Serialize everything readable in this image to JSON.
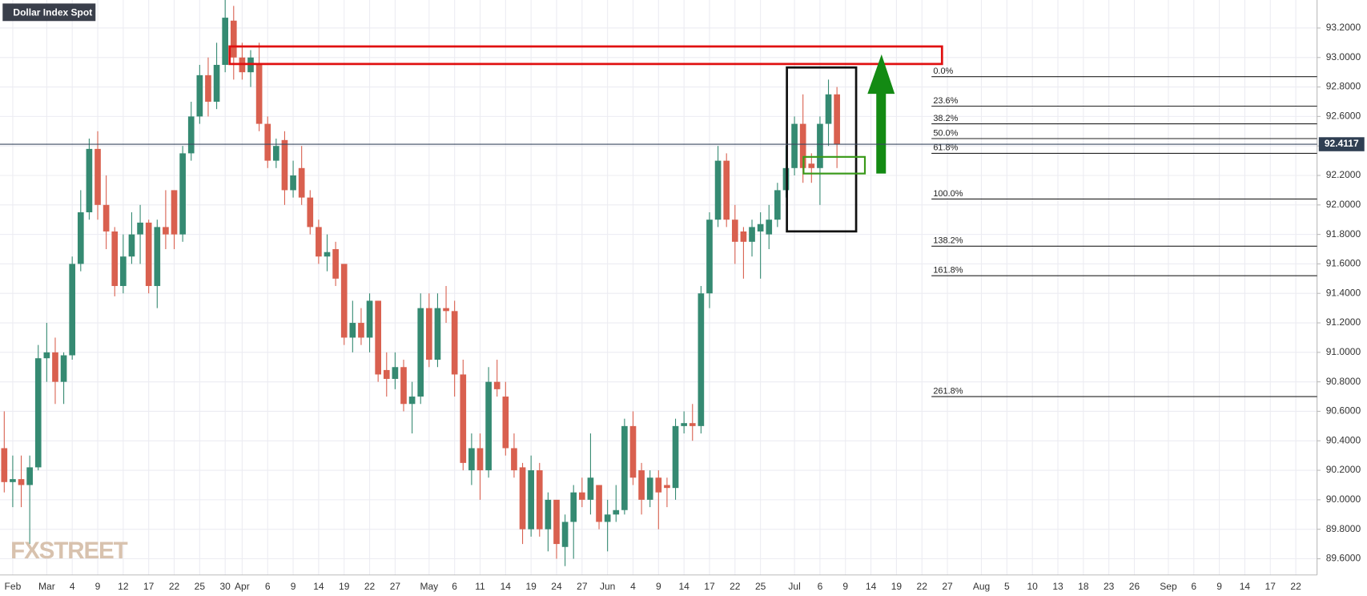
{
  "chart_data": {
    "type": "candlestick",
    "title": "Dollar Index Spot",
    "logo": "FXSTREET",
    "up_color": "#358a72",
    "down_color": "#d9604f",
    "grid": true,
    "categories": [
      null,
      "Feb",
      null,
      null,
      null,
      "Mar",
      null,
      null,
      "4",
      null,
      null,
      "9",
      null,
      null,
      "12",
      null,
      null,
      "17",
      null,
      null,
      "22",
      null,
      null,
      "25",
      null,
      null,
      "30",
      null,
      "Apr",
      null,
      null,
      "6",
      null,
      null,
      "9",
      null,
      null,
      "14",
      null,
      null,
      "19",
      null,
      null,
      "22",
      null,
      null,
      "27",
      null,
      null,
      null,
      "May",
      null,
      null,
      "6",
      null,
      null,
      "11",
      null,
      null,
      "14",
      null,
      null,
      "19",
      null,
      null,
      "24",
      null,
      null,
      "27",
      null,
      null,
      "Jun",
      null,
      null,
      "4",
      null,
      null,
      "9",
      null,
      null,
      "14",
      null,
      null,
      "17",
      null,
      null,
      "22",
      null,
      null,
      "25",
      null,
      null,
      null,
      "Jul",
      null,
      null,
      "6",
      null,
      null,
      "9",
      null,
      null,
      "14",
      null,
      null,
      "19",
      null,
      null,
      "22",
      null,
      null,
      "27",
      null,
      null,
      null,
      "Aug",
      null,
      null,
      "5",
      null,
      null,
      "10",
      null,
      null,
      "13",
      null,
      null,
      "18",
      null,
      null,
      "23",
      null,
      null,
      "26",
      null,
      null,
      null,
      "Sep",
      null,
      null,
      "6",
      null,
      null,
      "9",
      null,
      null,
      "14",
      null,
      null,
      "17",
      null,
      null,
      "22",
      null,
      null
    ],
    "open": [
      90.35,
      90.12,
      90.14,
      90.1,
      90.22,
      90.96,
      91.0,
      90.8,
      90.98,
      91.6,
      91.95,
      92.38,
      92.0,
      91.82,
      91.45,
      91.65,
      91.8,
      91.88,
      91.45,
      91.85,
      92.1,
      91.8,
      92.35,
      92.6,
      92.88,
      92.7,
      92.95,
      93.25,
      93.0,
      92.9,
      92.95,
      92.55,
      92.3,
      92.44,
      92.1,
      92.25,
      92.05,
      91.85,
      91.65,
      91.7,
      91.6,
      91.1,
      91.2,
      91.1,
      91.35,
      90.88,
      90.82,
      90.9,
      90.65,
      90.7,
      91.3,
      90.95,
      91.3,
      91.28,
      90.85,
      90.2,
      90.35,
      90.2,
      90.8,
      90.7,
      90.35,
      90.22,
      89.8,
      90.2,
      89.8,
      90.0,
      89.68,
      89.85,
      90.05,
      90.0,
      90.1,
      89.85,
      89.9,
      89.93,
      90.5,
      90.2,
      90.0,
      90.15,
      90.1,
      90.08,
      90.5,
      90.52,
      90.5,
      91.4,
      91.9,
      92.3,
      91.9,
      91.82,
      91.75,
      91.82,
      91.8,
      91.9,
      92.1,
      92.25,
      92.55,
      92.28,
      92.25,
      92.55,
      92.75,
      null,
      null,
      null,
      null,
      null,
      null,
      null,
      null,
      null,
      null,
      null,
      null,
      null,
      null,
      null,
      null,
      null,
      null,
      null,
      null,
      null,
      null,
      null,
      null,
      null,
      null,
      null,
      null,
      null,
      null,
      null,
      null,
      null,
      null,
      null,
      null,
      null,
      null,
      null,
      null,
      null,
      null,
      null,
      null,
      null,
      null,
      null,
      null,
      null,
      null,
      null,
      null,
      null,
      null,
      null,
      null
    ],
    "high": [
      90.6,
      90.3,
      90.3,
      90.3,
      91.05,
      91.2,
      91.1,
      91.0,
      91.65,
      92.1,
      92.45,
      92.5,
      92.2,
      91.85,
      91.8,
      91.95,
      92.0,
      91.9,
      91.9,
      92.1,
      92.1,
      92.4,
      92.7,
      92.95,
      93.0,
      93.1,
      93.4,
      93.35,
      93.1,
      93.05,
      93.1,
      92.6,
      92.45,
      92.5,
      92.3,
      92.4,
      92.1,
      91.9,
      91.8,
      91.75,
      91.6,
      91.35,
      91.3,
      91.4,
      91.35,
      91.0,
      91.0,
      90.95,
      90.8,
      91.4,
      91.4,
      91.4,
      91.45,
      91.35,
      90.95,
      90.45,
      90.45,
      90.9,
      90.95,
      90.8,
      90.45,
      90.25,
      90.3,
      90.25,
      90.05,
      90.0,
      89.9,
      90.1,
      90.15,
      90.45,
      90.1,
      90.0,
      90.1,
      90.55,
      90.6,
      90.25,
      90.2,
      90.2,
      90.15,
      90.55,
      90.6,
      90.65,
      91.45,
      91.95,
      92.4,
      92.35,
      92.0,
      91.85,
      91.9,
      91.95,
      92.0,
      92.15,
      92.4,
      92.6,
      92.75,
      92.35,
      92.6,
      92.85,
      92.8,
      null,
      null,
      null,
      null,
      null,
      null,
      null,
      null,
      null,
      null,
      null,
      null,
      null,
      null,
      null,
      null,
      null,
      null,
      null,
      null,
      null,
      null,
      null,
      null,
      null,
      null,
      null,
      null,
      null,
      null,
      null,
      null,
      null,
      null,
      null,
      null,
      null,
      null,
      null,
      null,
      null,
      null,
      null,
      null,
      null,
      null,
      null,
      null,
      null,
      null,
      null,
      null,
      null,
      null,
      null,
      null
    ],
    "low": [
      90.05,
      89.95,
      89.95,
      89.7,
      90.2,
      90.8,
      90.65,
      90.65,
      90.95,
      91.55,
      91.9,
      91.9,
      91.7,
      91.38,
      91.4,
      91.6,
      91.6,
      91.4,
      91.3,
      91.7,
      91.7,
      91.75,
      92.3,
      92.55,
      92.6,
      92.65,
      92.9,
      92.85,
      92.85,
      92.8,
      92.5,
      92.25,
      92.25,
      92.0,
      92.05,
      92.0,
      91.8,
      91.6,
      91.55,
      91.45,
      91.05,
      91.0,
      91.05,
      91.0,
      90.8,
      90.7,
      90.75,
      90.6,
      90.45,
      90.65,
      90.9,
      90.9,
      91.2,
      90.7,
      90.2,
      90.1,
      90.0,
      90.15,
      90.7,
      90.3,
      90.15,
      89.7,
      89.75,
      89.75,
      89.65,
      89.6,
      89.55,
      89.6,
      89.95,
      89.9,
      89.8,
      89.65,
      89.85,
      89.9,
      90.1,
      89.9,
      89.95,
      89.8,
      89.95,
      90.0,
      90.45,
      90.4,
      90.45,
      91.3,
      91.85,
      91.85,
      91.6,
      91.5,
      91.65,
      91.5,
      91.7,
      91.85,
      92.05,
      92.2,
      92.15,
      92.15,
      92.0,
      92.4,
      92.25,
      null,
      null,
      null,
      null,
      null,
      null,
      null,
      null,
      null,
      null,
      null,
      null,
      null,
      null,
      null,
      null,
      null,
      null,
      null,
      null,
      null,
      null,
      null,
      null,
      null,
      null,
      null,
      null,
      null,
      null,
      null,
      null,
      null,
      null,
      null,
      null,
      null,
      null,
      null,
      null,
      null,
      null,
      null,
      null,
      null,
      null,
      null,
      null,
      null,
      null,
      null,
      null,
      null,
      null,
      null,
      null
    ],
    "close": [
      90.12,
      90.14,
      90.1,
      90.22,
      90.96,
      91.0,
      90.8,
      90.98,
      91.6,
      91.95,
      92.38,
      92.0,
      91.82,
      91.45,
      91.65,
      91.8,
      91.88,
      91.45,
      91.85,
      91.8,
      91.8,
      92.35,
      92.6,
      92.88,
      92.7,
      92.95,
      93.27,
      93.0,
      92.9,
      93.0,
      92.55,
      92.3,
      92.4,
      92.1,
      92.2,
      92.05,
      91.85,
      91.65,
      91.68,
      91.5,
      91.1,
      91.2,
      91.1,
      91.35,
      90.85,
      90.82,
      90.9,
      90.65,
      90.7,
      91.3,
      90.95,
      91.3,
      91.28,
      90.85,
      90.25,
      90.35,
      90.2,
      90.8,
      90.75,
      90.35,
      90.2,
      89.8,
      90.2,
      89.8,
      90.0,
      89.7,
      89.85,
      90.05,
      90.0,
      90.15,
      89.85,
      89.9,
      89.93,
      90.5,
      90.15,
      90.0,
      90.15,
      90.05,
      90.08,
      90.5,
      90.52,
      90.5,
      91.4,
      91.9,
      92.3,
      91.9,
      91.75,
      91.75,
      91.85,
      91.87,
      91.9,
      92.1,
      92.25,
      92.55,
      92.25,
      92.25,
      92.55,
      92.75,
      92.41,
      null,
      null,
      null,
      null,
      null,
      null,
      null,
      null,
      null,
      null,
      null,
      null,
      null,
      null,
      null,
      null,
      null,
      null,
      null,
      null,
      null,
      null,
      null,
      null,
      null,
      null,
      null,
      null,
      null,
      null,
      null,
      null,
      null,
      null,
      null,
      null,
      null,
      null,
      null,
      null,
      null,
      null,
      null,
      null,
      null,
      null,
      null,
      null,
      null,
      null,
      null,
      null,
      null,
      null,
      null,
      null
    ],
    "ylim": [
      89.49,
      93.39
    ],
    "yticks": [
      {
        "value": 89.6,
        "label": "89.6000"
      },
      {
        "value": 89.8,
        "label": "89.8000"
      },
      {
        "value": 90.0,
        "label": "90.0000"
      },
      {
        "value": 90.2,
        "label": "90.2000"
      },
      {
        "value": 90.4,
        "label": "90.4000"
      },
      {
        "value": 90.6,
        "label": "90.6000"
      },
      {
        "value": 90.8,
        "label": "90.8000"
      },
      {
        "value": 91.0,
        "label": "91.0000"
      },
      {
        "value": 91.2,
        "label": "91.2000"
      },
      {
        "value": 91.4,
        "label": "91.4000"
      },
      {
        "value": 91.6,
        "label": "91.6000"
      },
      {
        "value": 91.8,
        "label": "91.8000"
      },
      {
        "value": 92.0,
        "label": "92.0000"
      },
      {
        "value": 92.2,
        "label": "92.2000"
      },
      {
        "value": 92.4,
        "label": "92.4000"
      },
      {
        "value": 92.6,
        "label": "92.6000"
      },
      {
        "value": 92.8,
        "label": "92.8000"
      },
      {
        "value": 93.0,
        "label": "93.0000"
      },
      {
        "value": 93.2,
        "label": "93.2000"
      }
    ],
    "last_price": 92.4117,
    "fib_levels": [
      {
        "label": "0.0%",
        "value": 92.87
      },
      {
        "label": "23.6%",
        "value": 92.67
      },
      {
        "label": "38.2%",
        "value": 92.55
      },
      {
        "label": "50.0%",
        "value": 92.45
      },
      {
        "label": "61.8%",
        "value": 92.35
      },
      {
        "label": "100.0%",
        "value": 92.04
      },
      {
        "label": "138.2%",
        "value": 91.72
      },
      {
        "label": "161.8%",
        "value": 91.52
      },
      {
        "label": "261.8%",
        "value": 90.7
      }
    ]
  }
}
